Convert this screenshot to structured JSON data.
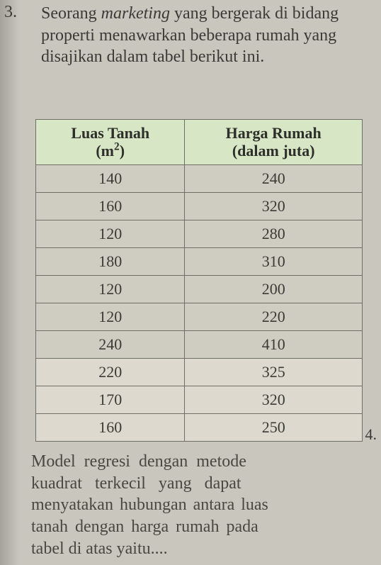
{
  "question_number": "3.",
  "prompt_parts": {
    "before_marketing": "Seorang ",
    "marketing": "marketing",
    "after_marketing": " yang bergerak di bidang properti menawarkan beberapa rumah yang disajikan dalam tabel berikut ini."
  },
  "table": {
    "header_col1_line1": "Luas Tanah",
    "header_col1_line2_prefix": "(m",
    "header_col1_line2_sup": "2",
    "header_col1_line2_suffix": ")",
    "header_col2_line1": "Harga Rumah",
    "header_col2_line2": "(dalam juta)",
    "header_bg": "#d7e7c6",
    "cell_bg_dark": "#cfccc2",
    "cell_bg_light": "#ddd9cf",
    "border_color": "#6f6e66",
    "rows": [
      {
        "luas": "140",
        "harga": "240",
        "light": false
      },
      {
        "luas": "160",
        "harga": "320",
        "light": false
      },
      {
        "luas": "120",
        "harga": "280",
        "light": false
      },
      {
        "luas": "180",
        "harga": "310",
        "light": false
      },
      {
        "luas": "120",
        "harga": "200",
        "light": false
      },
      {
        "luas": "120",
        "harga": "220",
        "light": false
      },
      {
        "luas": "240",
        "harga": "410",
        "light": false
      },
      {
        "luas": "220",
        "harga": "325",
        "light": true
      },
      {
        "luas": "170",
        "harga": "320",
        "light": true
      },
      {
        "luas": "160",
        "harga": "250",
        "light": true
      }
    ]
  },
  "side_number": "4.",
  "tail_lines": {
    "l1": "Model regresi dengan metode",
    "l2": "kuadrat terkecil yang dapat",
    "l3": "menyatakan hubungan antara luas",
    "l4": "tanah dengan harga rumah pada",
    "l5": "tabel di atas yaitu...."
  },
  "page_bg": "#c8c6bd",
  "text_color": "#3c3a36"
}
